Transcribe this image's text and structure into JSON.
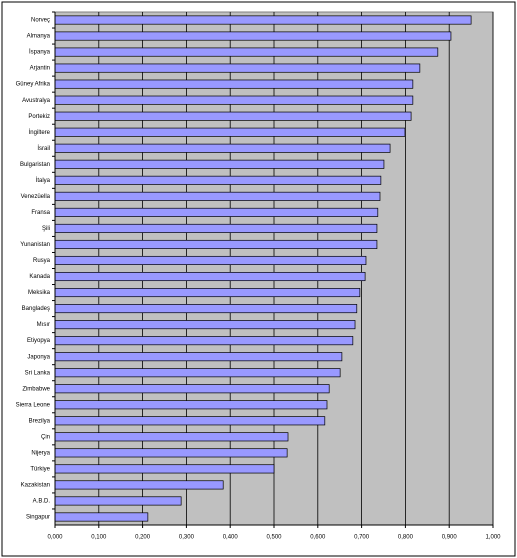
{
  "chart_data": {
    "type": "bar",
    "orientation": "horizontal",
    "categories": [
      "Norveç",
      "Almanya",
      "İspanya",
      "Arjantin",
      "Güney Afrika",
      "Avustralya",
      "Portekiz",
      "İngiltere",
      "İsrail",
      "Bulgaristan",
      "İtalya",
      "Venezüella",
      "Fransa",
      "Şili",
      "Yunanistan",
      "Rusya",
      "Kanada",
      "Meksika",
      "Bangladeş",
      "Mısır",
      "Etiyopya",
      "Japonya",
      "Sri Lanka",
      "Zimbabwe",
      "Sierra Leone",
      "Brezilya",
      "Çin",
      "Nijerya",
      "Türkiye",
      "Kazakistan",
      "A.B.D.",
      "Singapur"
    ],
    "values": [
      0.95,
      0.904,
      0.874,
      0.833,
      0.817,
      0.817,
      0.813,
      0.799,
      0.765,
      0.751,
      0.744,
      0.742,
      0.737,
      0.735,
      0.735,
      0.71,
      0.708,
      0.696,
      0.689,
      0.685,
      0.68,
      0.655,
      0.651,
      0.626,
      0.621,
      0.616,
      0.532,
      0.53,
      0.5,
      0.384,
      0.288,
      0.212
    ],
    "color": "#9999ff",
    "xlim": [
      0,
      1
    ],
    "xticks": [
      {
        "value": 0,
        "label": "0,000"
      },
      {
        "value": 0.1,
        "label": "0,100"
      },
      {
        "value": 0.2,
        "label": "0,200"
      },
      {
        "value": 0.3,
        "label": "0,300"
      },
      {
        "value": 0.4,
        "label": "0,400"
      },
      {
        "value": 0.5,
        "label": "0,500"
      },
      {
        "value": 0.6,
        "label": "0,600"
      },
      {
        "value": 0.7,
        "label": "0,700"
      },
      {
        "value": 0.8,
        "label": "0,800"
      },
      {
        "value": 0.9,
        "label": "0,900"
      },
      {
        "value": 1,
        "label": "1,000"
      }
    ],
    "grid": true
  }
}
